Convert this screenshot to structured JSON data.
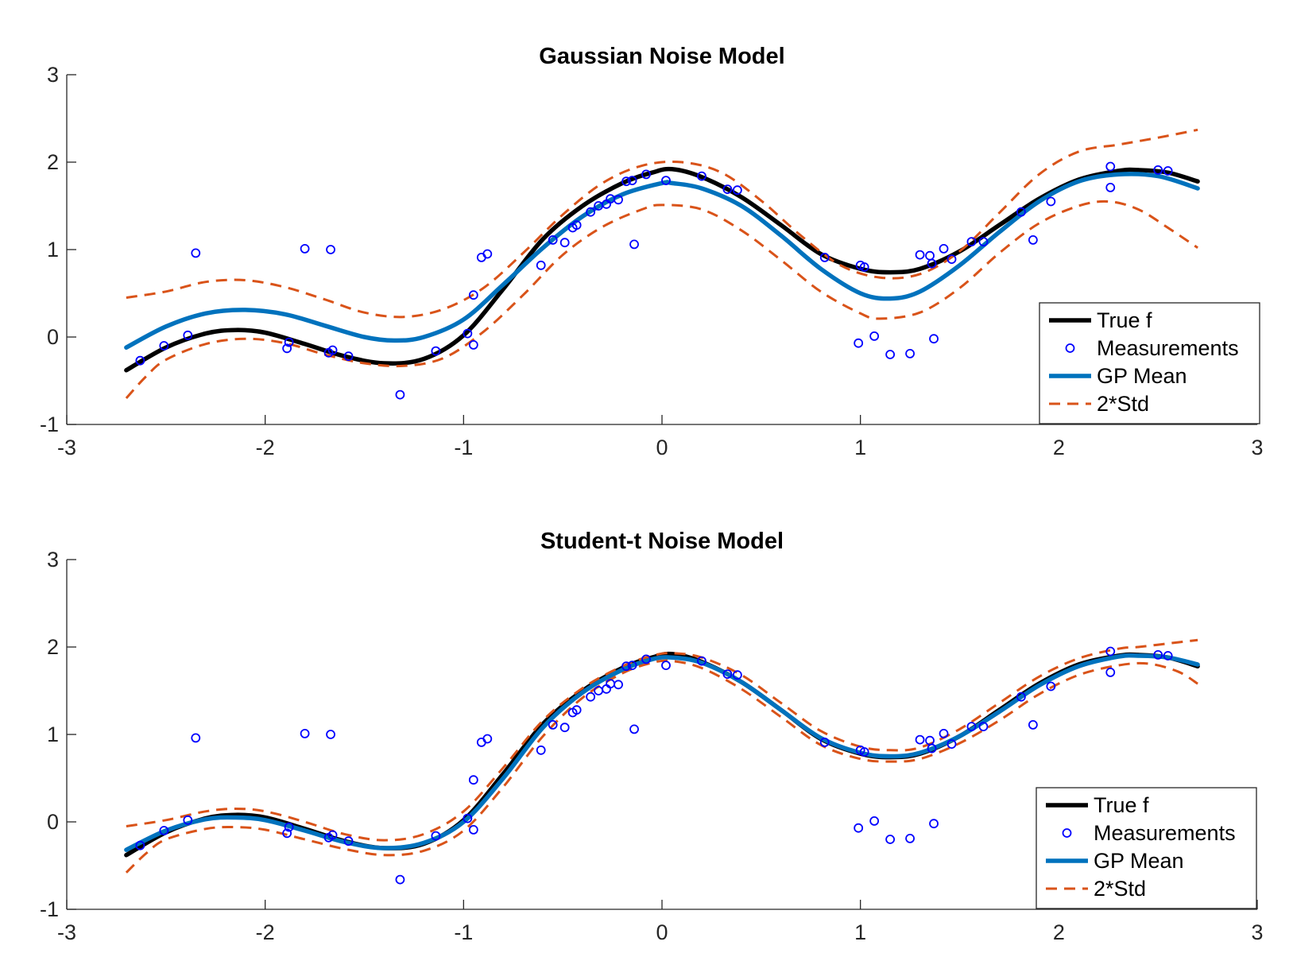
{
  "colors": {
    "true_f": "#000000",
    "measurements": "#0000ff",
    "gp_mean": "#0072bd",
    "std": "#d95319",
    "axes": "#262626",
    "background": "#ffffff"
  },
  "chart_data": [
    {
      "type": "line",
      "title": "Gaussian Noise Model",
      "xlabel": "",
      "ylabel": "",
      "xlim": [
        -3,
        3
      ],
      "ylim": [
        -1,
        3
      ],
      "x_ticks": [
        "-3",
        "-2",
        "-1",
        "0",
        "1",
        "2",
        "3"
      ],
      "y_ticks": [
        "-1",
        "0",
        "1",
        "2",
        "3"
      ],
      "grid": false,
      "legend_placement": "bottom-right",
      "legend": [
        "True f",
        "Measurements",
        "GP Mean",
        "2*Std"
      ],
      "series": [
        {
          "name": "True f",
          "style": "solid-thick",
          "color": "#000000",
          "x": [
            -2.7,
            -2.5,
            -2.3,
            -2.15,
            -2.0,
            -1.8,
            -1.6,
            -1.4,
            -1.2,
            -1.0,
            -0.8,
            -0.6,
            -0.4,
            -0.2,
            -0.05,
            0.05,
            0.2,
            0.4,
            0.6,
            0.8,
            1.0,
            1.15,
            1.3,
            1.5,
            1.7,
            1.9,
            2.1,
            2.3,
            2.4,
            2.55,
            2.7
          ],
          "y": [
            -0.38,
            -0.12,
            0.04,
            0.08,
            0.05,
            -0.08,
            -0.22,
            -0.3,
            -0.25,
            0.02,
            0.55,
            1.12,
            1.5,
            1.76,
            1.88,
            1.92,
            1.83,
            1.6,
            1.28,
            0.95,
            0.78,
            0.74,
            0.78,
            0.98,
            1.28,
            1.58,
            1.8,
            1.9,
            1.91,
            1.88,
            1.78
          ]
        },
        {
          "name": "GP Mean",
          "style": "solid-thick",
          "color": "#0072bd",
          "x": [
            -2.7,
            -2.5,
            -2.3,
            -2.1,
            -1.9,
            -1.7,
            -1.5,
            -1.35,
            -1.2,
            -1.0,
            -0.8,
            -0.6,
            -0.4,
            -0.2,
            0.0,
            0.05,
            0.2,
            0.4,
            0.6,
            0.8,
            1.0,
            1.15,
            1.3,
            1.5,
            1.7,
            1.9,
            2.1,
            2.3,
            2.5,
            2.7
          ],
          "y": [
            -0.12,
            0.12,
            0.27,
            0.31,
            0.26,
            0.13,
            0.0,
            -0.04,
            0.0,
            0.2,
            0.6,
            1.02,
            1.38,
            1.63,
            1.76,
            1.76,
            1.7,
            1.5,
            1.16,
            0.78,
            0.5,
            0.44,
            0.52,
            0.82,
            1.2,
            1.55,
            1.78,
            1.86,
            1.84,
            1.7
          ]
        },
        {
          "name": "2*Std",
          "style": "dashed",
          "color": "#d95319",
          "x": [
            -2.7,
            -2.5,
            -2.3,
            -2.1,
            -1.9,
            -1.7,
            -1.5,
            -1.3,
            -1.1,
            -0.9,
            -0.7,
            -0.5,
            -0.3,
            -0.1,
            0.1,
            0.3,
            0.5,
            0.7,
            0.9,
            1.1,
            1.3,
            1.5,
            1.7,
            1.9,
            2.1,
            2.3,
            2.5,
            2.7
          ],
          "y": [
            0.45,
            0.52,
            0.63,
            0.65,
            0.57,
            0.43,
            0.28,
            0.23,
            0.32,
            0.56,
            0.96,
            1.4,
            1.76,
            1.96,
            2.0,
            1.88,
            1.56,
            1.16,
            0.82,
            0.68,
            0.72,
            0.98,
            1.42,
            1.86,
            2.12,
            2.2,
            2.28,
            2.37
          ]
        },
        {
          "name": "2*Std",
          "style": "dashed",
          "color": "#d95319",
          "x": [
            -2.7,
            -2.6,
            -2.5,
            -2.3,
            -2.1,
            -1.9,
            -1.7,
            -1.5,
            -1.3,
            -1.1,
            -0.9,
            -0.7,
            -0.5,
            -0.3,
            -0.1,
            0.0,
            0.2,
            0.4,
            0.6,
            0.8,
            1.0,
            1.1,
            1.3,
            1.5,
            1.7,
            1.9,
            2.1,
            2.25,
            2.4,
            2.55,
            2.7
          ],
          "y": [
            -0.7,
            -0.45,
            -0.26,
            -0.08,
            -0.02,
            -0.07,
            -0.2,
            -0.3,
            -0.33,
            -0.24,
            0.06,
            0.48,
            0.94,
            1.26,
            1.46,
            1.51,
            1.46,
            1.22,
            0.88,
            0.52,
            0.27,
            0.21,
            0.28,
            0.56,
            0.96,
            1.3,
            1.5,
            1.55,
            1.46,
            1.25,
            1.02
          ]
        },
        {
          "name": "Measurements",
          "style": "markers",
          "color": "#0000ff",
          "x": [
            -2.63,
            -2.51,
            -2.39,
            -2.35,
            -1.89,
            -1.88,
            -1.8,
            -1.68,
            -1.67,
            -1.66,
            -1.58,
            -1.32,
            -1.14,
            -0.98,
            -0.95,
            -0.95,
            -0.91,
            -0.88,
            -0.61,
            -0.55,
            -0.49,
            -0.45,
            -0.43,
            -0.36,
            -0.32,
            -0.28,
            -0.26,
            -0.22,
            -0.18,
            -0.15,
            -0.14,
            -0.08,
            0.02,
            0.2,
            0.33,
            0.38,
            0.82,
            0.99,
            1.0,
            1.02,
            1.07,
            1.15,
            1.25,
            1.3,
            1.35,
            1.36,
            1.37,
            1.42,
            1.46,
            1.56,
            1.62,
            1.81,
            1.87,
            1.96,
            2.26,
            2.26,
            2.5,
            2.55
          ],
          "y": [
            -0.27,
            -0.1,
            0.02,
            0.96,
            -0.13,
            -0.06,
            1.01,
            -0.18,
            1.0,
            -0.15,
            -0.22,
            -0.66,
            -0.16,
            0.04,
            0.48,
            -0.09,
            0.91,
            0.95,
            0.82,
            1.11,
            1.08,
            1.25,
            1.28,
            1.43,
            1.5,
            1.52,
            1.58,
            1.57,
            1.78,
            1.79,
            1.06,
            1.86,
            1.79,
            1.84,
            1.69,
            1.68,
            0.91,
            -0.07,
            0.82,
            0.8,
            0.01,
            -0.2,
            -0.19,
            0.94,
            0.93,
            0.84,
            -0.02,
            1.01,
            0.89,
            1.09,
            1.09,
            1.43,
            1.11,
            1.55,
            1.95,
            1.71,
            1.91,
            1.9
          ]
        }
      ]
    },
    {
      "type": "line",
      "title": "Student-t Noise Model",
      "xlabel": "",
      "ylabel": "",
      "xlim": [
        -3,
        3
      ],
      "ylim": [
        -1,
        3
      ],
      "x_ticks": [
        "-3",
        "-2",
        "-1",
        "0",
        "1",
        "2",
        "3"
      ],
      "y_ticks": [
        "-1",
        "0",
        "1",
        "2",
        "3"
      ],
      "grid": false,
      "legend_placement": "bottom-right",
      "legend": [
        "True f",
        "Measurements",
        "GP Mean",
        "2*Std"
      ],
      "series": [
        {
          "name": "True f",
          "style": "solid-thick",
          "color": "#000000",
          "x": [
            -2.7,
            -2.5,
            -2.3,
            -2.15,
            -2.0,
            -1.8,
            -1.6,
            -1.4,
            -1.2,
            -1.0,
            -0.8,
            -0.6,
            -0.4,
            -0.2,
            -0.05,
            0.05,
            0.2,
            0.4,
            0.6,
            0.8,
            1.0,
            1.15,
            1.3,
            1.5,
            1.7,
            1.9,
            2.1,
            2.3,
            2.4,
            2.55,
            2.7
          ],
          "y": [
            -0.38,
            -0.12,
            0.04,
            0.08,
            0.05,
            -0.08,
            -0.22,
            -0.3,
            -0.25,
            0.02,
            0.55,
            1.12,
            1.5,
            1.76,
            1.88,
            1.92,
            1.83,
            1.6,
            1.28,
            0.95,
            0.78,
            0.74,
            0.78,
            0.98,
            1.28,
            1.58,
            1.8,
            1.9,
            1.91,
            1.88,
            1.78
          ]
        },
        {
          "name": "GP Mean",
          "style": "solid-thick",
          "color": "#0072bd",
          "x": [
            -2.7,
            -2.5,
            -2.3,
            -2.15,
            -2.0,
            -1.8,
            -1.6,
            -1.4,
            -1.2,
            -1.0,
            -0.8,
            -0.6,
            -0.4,
            -0.2,
            -0.05,
            0.05,
            0.2,
            0.4,
            0.6,
            0.8,
            1.0,
            1.15,
            1.3,
            1.5,
            1.7,
            1.9,
            2.1,
            2.3,
            2.4,
            2.55,
            2.7
          ],
          "y": [
            -0.32,
            -0.1,
            0.03,
            0.05,
            0.02,
            -0.1,
            -0.23,
            -0.3,
            -0.24,
            0.0,
            0.5,
            1.08,
            1.48,
            1.74,
            1.86,
            1.88,
            1.82,
            1.6,
            1.28,
            0.96,
            0.79,
            0.75,
            0.79,
            0.98,
            1.26,
            1.56,
            1.78,
            1.89,
            1.9,
            1.88,
            1.8
          ]
        },
        {
          "name": "2*Std",
          "style": "dashed",
          "color": "#d95319",
          "x": [
            -2.7,
            -2.5,
            -2.3,
            -2.15,
            -2.0,
            -1.8,
            -1.6,
            -1.4,
            -1.2,
            -1.0,
            -0.8,
            -0.6,
            -0.4,
            -0.2,
            -0.05,
            0.05,
            0.2,
            0.4,
            0.6,
            0.8,
            1.0,
            1.15,
            1.3,
            1.5,
            1.7,
            1.9,
            2.1,
            2.3,
            2.4,
            2.55,
            2.7
          ],
          "y": [
            -0.05,
            0.02,
            0.12,
            0.15,
            0.12,
            0.0,
            -0.14,
            -0.21,
            -0.14,
            0.12,
            0.62,
            1.16,
            1.53,
            1.78,
            1.9,
            1.93,
            1.88,
            1.68,
            1.36,
            1.04,
            0.86,
            0.82,
            0.85,
            1.06,
            1.36,
            1.66,
            1.87,
            1.98,
            2.0,
            2.04,
            2.08
          ]
        },
        {
          "name": "2*Std",
          "style": "dashed",
          "color": "#d95319",
          "x": [
            -2.7,
            -2.6,
            -2.5,
            -2.3,
            -2.15,
            -2.0,
            -1.8,
            -1.6,
            -1.4,
            -1.2,
            -1.0,
            -0.8,
            -0.6,
            -0.4,
            -0.2,
            -0.05,
            0.05,
            0.2,
            0.4,
            0.6,
            0.8,
            1.0,
            1.15,
            1.3,
            1.5,
            1.7,
            1.9,
            2.1,
            2.3,
            2.45,
            2.6,
            2.7
          ],
          "y": [
            -0.58,
            -0.36,
            -0.2,
            -0.08,
            -0.06,
            -0.09,
            -0.2,
            -0.31,
            -0.38,
            -0.33,
            -0.1,
            0.4,
            0.98,
            1.42,
            1.7,
            1.82,
            1.84,
            1.76,
            1.52,
            1.2,
            0.88,
            0.72,
            0.69,
            0.72,
            0.9,
            1.16,
            1.46,
            1.68,
            1.79,
            1.81,
            1.72,
            1.58
          ]
        },
        {
          "name": "Measurements",
          "style": "markers",
          "color": "#0000ff",
          "x": [
            -2.63,
            -2.51,
            -2.39,
            -2.35,
            -1.89,
            -1.88,
            -1.8,
            -1.68,
            -1.67,
            -1.66,
            -1.58,
            -1.32,
            -1.14,
            -0.98,
            -0.95,
            -0.95,
            -0.91,
            -0.88,
            -0.61,
            -0.55,
            -0.49,
            -0.45,
            -0.43,
            -0.36,
            -0.32,
            -0.28,
            -0.26,
            -0.22,
            -0.18,
            -0.15,
            -0.14,
            -0.08,
            0.02,
            0.2,
            0.33,
            0.38,
            0.82,
            0.99,
            1.0,
            1.02,
            1.07,
            1.15,
            1.25,
            1.3,
            1.35,
            1.36,
            1.37,
            1.42,
            1.46,
            1.56,
            1.62,
            1.81,
            1.87,
            1.96,
            2.26,
            2.26,
            2.5,
            2.55
          ],
          "y": [
            -0.27,
            -0.1,
            0.02,
            0.96,
            -0.13,
            -0.06,
            1.01,
            -0.18,
            1.0,
            -0.15,
            -0.22,
            -0.66,
            -0.16,
            0.04,
            0.48,
            -0.09,
            0.91,
            0.95,
            0.82,
            1.11,
            1.08,
            1.25,
            1.28,
            1.43,
            1.5,
            1.52,
            1.58,
            1.57,
            1.78,
            1.79,
            1.06,
            1.86,
            1.79,
            1.84,
            1.69,
            1.68,
            0.91,
            -0.07,
            0.82,
            0.8,
            0.01,
            -0.2,
            -0.19,
            0.94,
            0.93,
            0.84,
            -0.02,
            1.01,
            0.89,
            1.09,
            1.09,
            1.43,
            1.11,
            1.55,
            1.95,
            1.71,
            1.91,
            1.9
          ]
        }
      ]
    }
  ]
}
